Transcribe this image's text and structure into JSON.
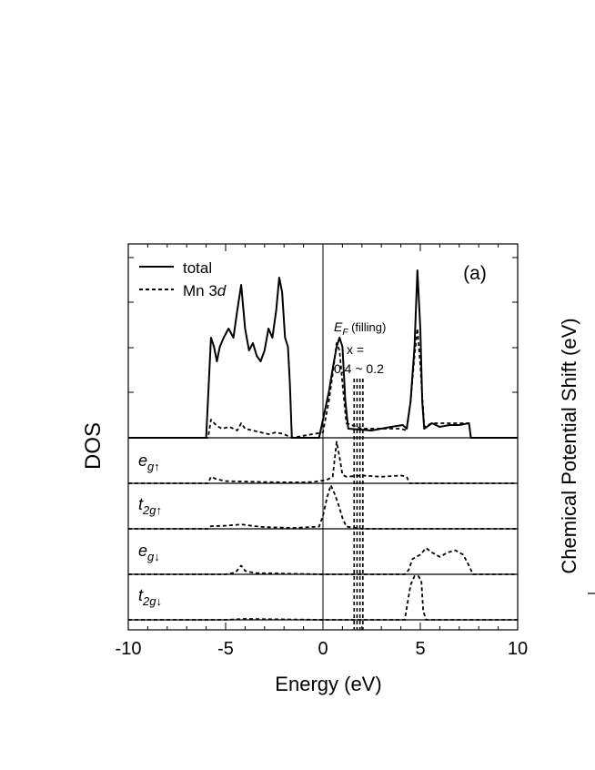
{
  "chart_data": {
    "type": "line",
    "panel_label": "(a)",
    "xlabel": "Energy (eV)",
    "ylabel": "DOS",
    "xlim": [
      -10,
      10
    ],
    "xticks": [
      -10,
      -5,
      0,
      5,
      10
    ],
    "legend": {
      "placement": "top-left",
      "entries": [
        {
          "label": "total",
          "style": "solid"
        },
        {
          "label": "Mn 3d",
          "label_plain": "Mn 3",
          "label_italic": "d",
          "style": "dashed"
        }
      ]
    },
    "annotations": {
      "ef_label": "E",
      "ef_sub": "F",
      "ef_suffix": " (filling)",
      "x_eq": "x =",
      "x_range": "0.4 ~ 0.2",
      "fermi_levels": [
        1.6,
        1.75,
        1.9,
        2.05
      ]
    },
    "panels": [
      {
        "id": "total",
        "label": "",
        "series": [
          {
            "name": "total",
            "style": "solid",
            "points": [
              [
                -10,
                0
              ],
              [
                -6.0,
                0
              ],
              [
                -5.75,
                0.55
              ],
              [
                -5.6,
                0.5
              ],
              [
                -5.45,
                0.42
              ],
              [
                -5.3,
                0.5
              ],
              [
                -5.1,
                0.55
              ],
              [
                -4.85,
                0.6
              ],
              [
                -4.6,
                0.55
              ],
              [
                -4.4,
                0.7
              ],
              [
                -4.2,
                0.84
              ],
              [
                -4.0,
                0.6
              ],
              [
                -3.8,
                0.48
              ],
              [
                -3.6,
                0.52
              ],
              [
                -3.4,
                0.45
              ],
              [
                -3.2,
                0.42
              ],
              [
                -3.0,
                0.48
              ],
              [
                -2.8,
                0.6
              ],
              [
                -2.6,
                0.55
              ],
              [
                -2.4,
                0.7
              ],
              [
                -2.25,
                0.88
              ],
              [
                -2.1,
                0.8
              ],
              [
                -1.95,
                0.55
              ],
              [
                -1.8,
                0.5
              ],
              [
                -1.7,
                0.3
              ],
              [
                -1.6,
                0
              ],
              [
                -0.2,
                0
              ],
              [
                0.0,
                0.1
              ],
              [
                0.3,
                0.25
              ],
              [
                0.5,
                0.38
              ],
              [
                0.7,
                0.5
              ],
              [
                0.85,
                0.55
              ],
              [
                1.0,
                0.5
              ],
              [
                1.15,
                0.2
              ],
              [
                1.3,
                0.05
              ],
              [
                2.5,
                0.04
              ],
              [
                3.5,
                0.06
              ],
              [
                4.1,
                0.07
              ],
              [
                4.3,
                0.05
              ],
              [
                4.5,
                0.2
              ],
              [
                4.7,
                0.5
              ],
              [
                4.85,
                0.92
              ],
              [
                5.0,
                0.6
              ],
              [
                5.1,
                0.2
              ],
              [
                5.2,
                0.05
              ],
              [
                5.6,
                0.08
              ],
              [
                6.0,
                0.06
              ],
              [
                6.5,
                0.07
              ],
              [
                7.0,
                0.07
              ],
              [
                7.5,
                0.08
              ],
              [
                7.6,
                0
              ],
              [
                10,
                0
              ]
            ]
          },
          {
            "name": "Mn 3d",
            "style": "dashed",
            "points": [
              [
                -10,
                0
              ],
              [
                -5.9,
                0
              ],
              [
                -5.75,
                0.1
              ],
              [
                -5.5,
                0.07
              ],
              [
                -5.2,
                0.05
              ],
              [
                -4.8,
                0.06
              ],
              [
                -4.4,
                0.04
              ],
              [
                -4.2,
                0.08
              ],
              [
                -4.0,
                0.05
              ],
              [
                -3.6,
                0.04
              ],
              [
                -3.2,
                0.03
              ],
              [
                -2.8,
                0.02
              ],
              [
                -2.4,
                0.03
              ],
              [
                -2.0,
                0.02
              ],
              [
                -1.6,
                0
              ],
              [
                0.0,
                0.03
              ],
              [
                0.3,
                0.2
              ],
              [
                0.5,
                0.35
              ],
              [
                0.7,
                0.52
              ],
              [
                0.85,
                0.48
              ],
              [
                1.0,
                0.3
              ],
              [
                1.2,
                0.08
              ],
              [
                2.0,
                0.05
              ],
              [
                3.0,
                0.05
              ],
              [
                4.0,
                0.05
              ],
              [
                4.3,
                0.04
              ],
              [
                4.5,
                0.2
              ],
              [
                4.7,
                0.45
              ],
              [
                4.85,
                0.6
              ],
              [
                5.0,
                0.4
              ],
              [
                5.2,
                0.06
              ],
              [
                5.6,
                0.08
              ],
              [
                6.5,
                0.08
              ],
              [
                7.5,
                0.08
              ],
              [
                7.6,
                0
              ],
              [
                10,
                0
              ]
            ]
          }
        ]
      },
      {
        "id": "eg_up",
        "label": "e",
        "sub": "g",
        "spin": "↑",
        "series": [
          {
            "name": "Mn 3d",
            "style": "dashed",
            "points": [
              [
                -10,
                0
              ],
              [
                -5.9,
                0
              ],
              [
                -5.75,
                0.15
              ],
              [
                -5.5,
                0.1
              ],
              [
                -5.0,
                0.05
              ],
              [
                -4.0,
                0.04
              ],
              [
                -3.0,
                0.03
              ],
              [
                -1.5,
                0.02
              ],
              [
                -0.5,
                0.03
              ],
              [
                0.2,
                0.08
              ],
              [
                0.5,
                0.15
              ],
              [
                0.7,
                0.95
              ],
              [
                0.85,
                0.6
              ],
              [
                1.0,
                0.2
              ],
              [
                1.2,
                0.15
              ],
              [
                2.0,
                0.18
              ],
              [
                3.0,
                0.15
              ],
              [
                4.0,
                0.18
              ],
              [
                4.3,
                0.15
              ],
              [
                4.45,
                0
              ],
              [
                10,
                0
              ]
            ]
          }
        ]
      },
      {
        "id": "t2g_up",
        "label": "t",
        "sub": "2g",
        "spin": "↑",
        "series": [
          {
            "name": "Mn 3d",
            "style": "dashed",
            "points": [
              [
                -10,
                0
              ],
              [
                -5.9,
                0
              ],
              [
                -5.75,
                0.06
              ],
              [
                -5.0,
                0.07
              ],
              [
                -4.2,
                0.1
              ],
              [
                -3.5,
                0.06
              ],
              [
                -3.0,
                0.04
              ],
              [
                -1.5,
                0.02
              ],
              [
                -0.2,
                0.05
              ],
              [
                0.0,
                0.3
              ],
              [
                0.2,
                0.7
              ],
              [
                0.4,
                1.0
              ],
              [
                0.6,
                0.8
              ],
              [
                0.8,
                0.55
              ],
              [
                1.0,
                0.25
              ],
              [
                1.2,
                0.05
              ],
              [
                2.0,
                0
              ],
              [
                10,
                0
              ]
            ]
          }
        ]
      },
      {
        "id": "eg_down",
        "label": "e",
        "sub": "g",
        "spin": "↓",
        "series": [
          {
            "name": "Mn 3d",
            "style": "dashed",
            "points": [
              [
                -10,
                0
              ],
              [
                -5.0,
                0
              ],
              [
                -4.5,
                0.04
              ],
              [
                -4.2,
                0.2
              ],
              [
                -4.0,
                0.08
              ],
              [
                -3.5,
                0.03
              ],
              [
                -2.5,
                0.02
              ],
              [
                0.0,
                0
              ],
              [
                4.2,
                0
              ],
              [
                4.4,
                0.1
              ],
              [
                4.6,
                0.35
              ],
              [
                4.8,
                0.4
              ],
              [
                5.0,
                0.45
              ],
              [
                5.3,
                0.6
              ],
              [
                5.6,
                0.5
              ],
              [
                6.0,
                0.4
              ],
              [
                6.4,
                0.5
              ],
              [
                6.8,
                0.55
              ],
              [
                7.2,
                0.45
              ],
              [
                7.5,
                0.2
              ],
              [
                7.7,
                0
              ],
              [
                10,
                0
              ]
            ]
          }
        ]
      },
      {
        "id": "t2g_down",
        "label": "t",
        "sub": "2g",
        "spin": "↓",
        "series": [
          {
            "name": "Mn 3d",
            "style": "dashed",
            "points": [
              [
                -10,
                0
              ],
              [
                -5.0,
                0
              ],
              [
                -4.0,
                0.02
              ],
              [
                -2.0,
                0.01
              ],
              [
                0.0,
                0
              ],
              [
                4.2,
                0
              ],
              [
                4.35,
                0.4
              ],
              [
                4.5,
                0.8
              ],
              [
                4.7,
                1.0
              ],
              [
                4.9,
                1.0
              ],
              [
                5.05,
                0.9
              ],
              [
                5.15,
                0.2
              ],
              [
                5.3,
                0
              ],
              [
                10,
                0
              ]
            ]
          }
        ]
      }
    ],
    "side_axis_label": "Chemical Potential Shift (eV)"
  }
}
